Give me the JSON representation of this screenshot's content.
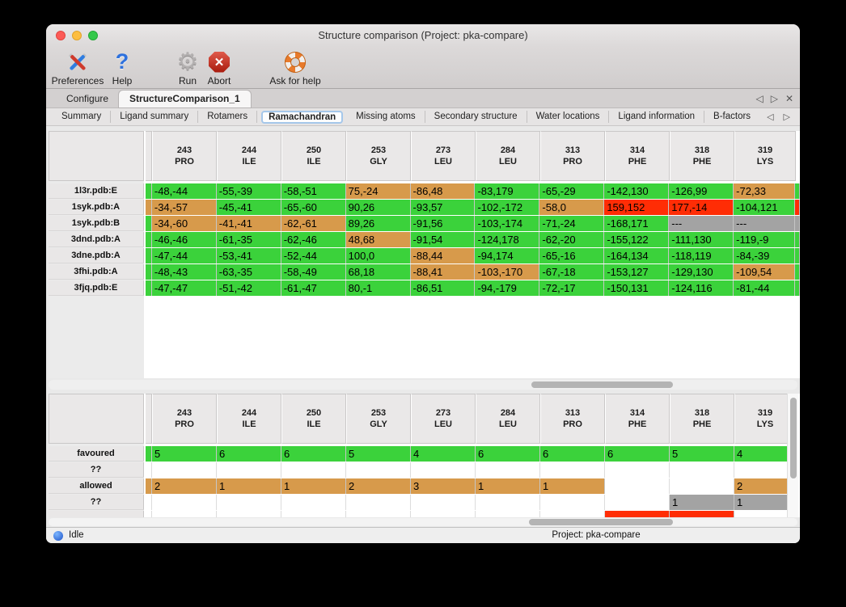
{
  "window": {
    "title": "Structure comparison (Project: pka-compare)"
  },
  "toolbar": {
    "items": [
      {
        "label": "Preferences",
        "icon": "tools-icon"
      },
      {
        "label": "Help",
        "icon": "question-icon",
        "glyph": "?"
      },
      {
        "label": "Run",
        "icon": "gear-icon",
        "glyph": "⚙"
      },
      {
        "label": "Abort",
        "icon": "abort-icon",
        "glyph": "✕"
      },
      {
        "label": "Ask for help",
        "icon": "lifebuoy-icon"
      }
    ]
  },
  "tabs": {
    "items": [
      {
        "label": "Configure",
        "active": false
      },
      {
        "label": "StructureComparison_1",
        "active": true
      }
    ],
    "nav": {
      "prev": "◁",
      "next": "▷",
      "close": "✕"
    }
  },
  "subtabs": {
    "items": [
      "Summary",
      "Ligand summary",
      "Rotamers",
      "Ramachandran",
      "Missing atoms",
      "Secondary structure",
      "Water locations",
      "Ligand information",
      "B-factors"
    ],
    "active": "Ramachandran",
    "nav": {
      "prev": "◁",
      "next": "▷"
    }
  },
  "colors": {
    "favoured": "#3bd23b",
    "allowed": "#d79a4b",
    "outlier": "#ff2d05",
    "missing": "#a3a3a3",
    "active_subtab_border": "#a5c7ea"
  },
  "columns": [
    {
      "number": "243",
      "residue": "PRO"
    },
    {
      "number": "244",
      "residue": "ILE"
    },
    {
      "number": "250",
      "residue": "ILE"
    },
    {
      "number": "253",
      "residue": "GLY"
    },
    {
      "number": "273",
      "residue": "LEU"
    },
    {
      "number": "284",
      "residue": "LEU"
    },
    {
      "number": "313",
      "residue": "PRO"
    },
    {
      "number": "314",
      "residue": "PHE"
    },
    {
      "number": "318",
      "residue": "PHE"
    },
    {
      "number": "319",
      "residue": "LYS"
    }
  ],
  "top_table": {
    "rows": [
      {
        "label": "1l3r.pdb:E",
        "edge": "favoured",
        "overflow": "favoured",
        "cells": [
          {
            "text": "-48,-44",
            "state": "favoured"
          },
          {
            "text": "-55,-39",
            "state": "favoured"
          },
          {
            "text": "-58,-51",
            "state": "favoured"
          },
          {
            "text": "75,-24",
            "state": "allowed"
          },
          {
            "text": "-86,48",
            "state": "allowed"
          },
          {
            "text": "-83,179",
            "state": "favoured"
          },
          {
            "text": "-65,-29",
            "state": "favoured"
          },
          {
            "text": "-142,130",
            "state": "favoured"
          },
          {
            "text": "-126,99",
            "state": "favoured"
          },
          {
            "text": "-72,33",
            "state": "allowed"
          }
        ]
      },
      {
        "label": "1syk.pdb:A",
        "edge": "allowed",
        "overflow": "outlier",
        "cells": [
          {
            "text": "-34,-57",
            "state": "allowed"
          },
          {
            "text": "-45,-41",
            "state": "favoured"
          },
          {
            "text": "-65,-60",
            "state": "favoured"
          },
          {
            "text": "90,26",
            "state": "favoured"
          },
          {
            "text": "-93,57",
            "state": "favoured"
          },
          {
            "text": "-102,-172",
            "state": "favoured"
          },
          {
            "text": "-58,0",
            "state": "allowed"
          },
          {
            "text": "159,152",
            "state": "outlier"
          },
          {
            "text": "177,-14",
            "state": "outlier"
          },
          {
            "text": "-104,121",
            "state": "favoured"
          }
        ]
      },
      {
        "label": "1syk.pdb:B",
        "edge": "favoured",
        "overflow": "missing",
        "cells": [
          {
            "text": "-34,-60",
            "state": "allowed"
          },
          {
            "text": "-41,-41",
            "state": "allowed"
          },
          {
            "text": "-62,-61",
            "state": "allowed"
          },
          {
            "text": "89,26",
            "state": "favoured"
          },
          {
            "text": "-91,56",
            "state": "favoured"
          },
          {
            "text": "-103,-174",
            "state": "favoured"
          },
          {
            "text": "-71,-24",
            "state": "favoured"
          },
          {
            "text": "-168,171",
            "state": "favoured"
          },
          {
            "text": "---",
            "state": "missing"
          },
          {
            "text": "---",
            "state": "missing"
          }
        ]
      },
      {
        "label": "3dnd.pdb:A",
        "edge": "favoured",
        "overflow": "favoured",
        "cells": [
          {
            "text": "-46,-46",
            "state": "favoured"
          },
          {
            "text": "-61,-35",
            "state": "favoured"
          },
          {
            "text": "-62,-46",
            "state": "favoured"
          },
          {
            "text": "48,68",
            "state": "allowed"
          },
          {
            "text": "-91,54",
            "state": "favoured"
          },
          {
            "text": "-124,178",
            "state": "favoured"
          },
          {
            "text": "-62,-20",
            "state": "favoured"
          },
          {
            "text": "-155,122",
            "state": "favoured"
          },
          {
            "text": "-111,130",
            "state": "favoured"
          },
          {
            "text": "-119,-9",
            "state": "favoured"
          }
        ]
      },
      {
        "label": "3dne.pdb:A",
        "edge": "favoured",
        "overflow": "favoured",
        "cells": [
          {
            "text": "-47,-44",
            "state": "favoured"
          },
          {
            "text": "-53,-41",
            "state": "favoured"
          },
          {
            "text": "-52,-44",
            "state": "favoured"
          },
          {
            "text": "100,0",
            "state": "favoured"
          },
          {
            "text": "-88,44",
            "state": "allowed"
          },
          {
            "text": "-94,174",
            "state": "favoured"
          },
          {
            "text": "-65,-16",
            "state": "favoured"
          },
          {
            "text": "-164,134",
            "state": "favoured"
          },
          {
            "text": "-118,119",
            "state": "favoured"
          },
          {
            "text": "-84,-39",
            "state": "favoured"
          }
        ]
      },
      {
        "label": "3fhi.pdb:A",
        "edge": "favoured",
        "overflow": "favoured",
        "cells": [
          {
            "text": "-48,-43",
            "state": "favoured"
          },
          {
            "text": "-63,-35",
            "state": "favoured"
          },
          {
            "text": "-58,-49",
            "state": "favoured"
          },
          {
            "text": "68,18",
            "state": "favoured"
          },
          {
            "text": "-88,41",
            "state": "allowed"
          },
          {
            "text": "-103,-170",
            "state": "allowed"
          },
          {
            "text": "-67,-18",
            "state": "favoured"
          },
          {
            "text": "-153,127",
            "state": "favoured"
          },
          {
            "text": "-129,130",
            "state": "favoured"
          },
          {
            "text": "-109,54",
            "state": "allowed"
          }
        ]
      },
      {
        "label": "3fjq.pdb:E",
        "edge": "favoured",
        "overflow": "favoured",
        "cells": [
          {
            "text": "-47,-47",
            "state": "favoured"
          },
          {
            "text": "-51,-42",
            "state": "favoured"
          },
          {
            "text": "-61,-47",
            "state": "favoured"
          },
          {
            "text": "80,-1",
            "state": "favoured"
          },
          {
            "text": "-86,51",
            "state": "favoured"
          },
          {
            "text": "-94,-179",
            "state": "favoured"
          },
          {
            "text": "-72,-17",
            "state": "favoured"
          },
          {
            "text": "-150,131",
            "state": "favoured"
          },
          {
            "text": "-124,116",
            "state": "favoured"
          },
          {
            "text": "-81,-44",
            "state": "favoured"
          }
        ]
      }
    ]
  },
  "bottom_table": {
    "rows": [
      {
        "label": "favoured",
        "edge": "favoured",
        "cells": [
          {
            "text": "5",
            "state": "favoured"
          },
          {
            "text": "6",
            "state": "favoured"
          },
          {
            "text": "6",
            "state": "favoured"
          },
          {
            "text": "5",
            "state": "favoured"
          },
          {
            "text": "4",
            "state": "favoured"
          },
          {
            "text": "6",
            "state": "favoured"
          },
          {
            "text": "6",
            "state": "favoured"
          },
          {
            "text": "6",
            "state": "favoured"
          },
          {
            "text": "5",
            "state": "favoured"
          },
          {
            "text": "4",
            "state": "favoured"
          }
        ]
      },
      {
        "label": "??",
        "edge": "empty",
        "cells": [
          {
            "text": "",
            "state": "empty"
          },
          {
            "text": "",
            "state": "empty"
          },
          {
            "text": "",
            "state": "empty"
          },
          {
            "text": "",
            "state": "empty"
          },
          {
            "text": "",
            "state": "empty"
          },
          {
            "text": "",
            "state": "empty"
          },
          {
            "text": "",
            "state": "empty"
          },
          {
            "text": "",
            "state": "empty"
          },
          {
            "text": "",
            "state": "empty"
          },
          {
            "text": "",
            "state": "empty"
          }
        ]
      },
      {
        "label": "allowed",
        "edge": "allowed",
        "cells": [
          {
            "text": "2",
            "state": "allowed"
          },
          {
            "text": "1",
            "state": "allowed"
          },
          {
            "text": "1",
            "state": "allowed"
          },
          {
            "text": "2",
            "state": "allowed"
          },
          {
            "text": "3",
            "state": "allowed"
          },
          {
            "text": "1",
            "state": "allowed"
          },
          {
            "text": "1",
            "state": "allowed"
          },
          {
            "text": "",
            "state": "empty"
          },
          {
            "text": "",
            "state": "empty"
          },
          {
            "text": "2",
            "state": "allowed"
          }
        ]
      },
      {
        "label": "??",
        "edge": "empty",
        "cells": [
          {
            "text": "",
            "state": "empty"
          },
          {
            "text": "",
            "state": "empty"
          },
          {
            "text": "",
            "state": "empty"
          },
          {
            "text": "",
            "state": "empty"
          },
          {
            "text": "",
            "state": "empty"
          },
          {
            "text": "",
            "state": "empty"
          },
          {
            "text": "",
            "state": "empty"
          },
          {
            "text": "",
            "state": "empty"
          },
          {
            "text": "1",
            "state": "missing"
          },
          {
            "text": "1",
            "state": "missing"
          }
        ]
      },
      {
        "label": "",
        "edge": "empty",
        "cells": [
          {
            "text": "",
            "state": "empty"
          },
          {
            "text": "",
            "state": "empty"
          },
          {
            "text": "",
            "state": "empty"
          },
          {
            "text": "",
            "state": "empty"
          },
          {
            "text": "",
            "state": "empty"
          },
          {
            "text": "",
            "state": "empty"
          },
          {
            "text": "",
            "state": "empty"
          },
          {
            "text": "",
            "state": "outlier"
          },
          {
            "text": "",
            "state": "outlier"
          },
          {
            "text": "",
            "state": "empty"
          }
        ]
      }
    ]
  },
  "status_bar": {
    "status": "Idle",
    "project": "Project: pka-compare"
  }
}
